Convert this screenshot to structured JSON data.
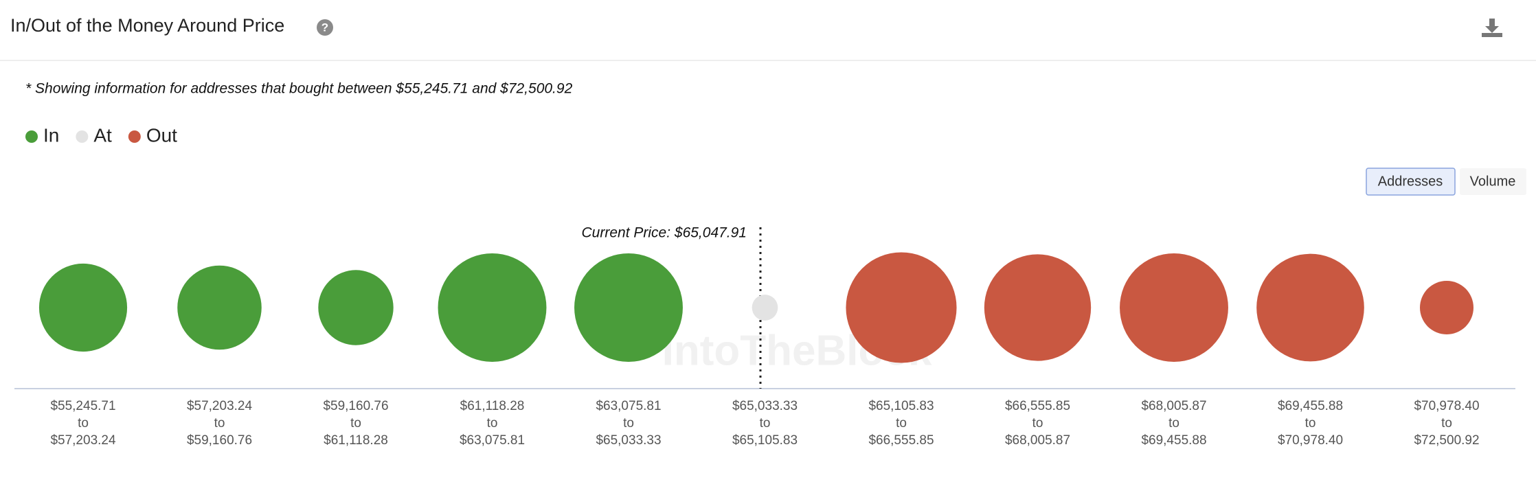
{
  "header": {
    "title": "In/Out of the Money Around Price",
    "note": "* Showing information for addresses that bought between $55,245.71 and $72,500.92",
    "buttons": [
      "Addresses",
      "Volume"
    ]
  },
  "chart_data": {
    "type": "bubble",
    "annotation": "Current Price: $65,047.91",
    "watermark": "IntoTheBlock",
    "categories": [
      [
        "$55,245.71",
        "to",
        "$57,203.24"
      ],
      [
        "$57,203.24",
        "to",
        "$59,160.76"
      ],
      [
        "$59,160.76",
        "to",
        "$61,118.28"
      ],
      [
        "$61,118.28",
        "to",
        "$63,075.81"
      ],
      [
        "$63,075.81",
        "to",
        "$65,033.33"
      ],
      [
        "$65,033.33",
        "to",
        "$65,105.83"
      ],
      [
        "$65,105.83",
        "to",
        "$66,555.85"
      ],
      [
        "$66,555.85",
        "to",
        "$68,005.87"
      ],
      [
        "$68,005.87",
        "to",
        "$69,455.88"
      ],
      [
        "$69,455.88",
        "to",
        "$70,978.40"
      ],
      [
        "$70,978.40",
        "to",
        "$72,500.92"
      ]
    ],
    "series": [
      {
        "name": "In",
        "color": "#4a9d3a",
        "values": [
          81,
          74,
          59,
          123,
          123,
          null,
          null,
          null,
          null,
          null,
          null
        ]
      },
      {
        "name": "At",
        "color": "#e3e3e3",
        "values": [
          null,
          null,
          null,
          null,
          null,
          7,
          null,
          null,
          null,
          null,
          null
        ]
      },
      {
        "name": "Out",
        "color": "#c95841",
        "values": [
          null,
          null,
          null,
          null,
          null,
          null,
          128,
          119,
          123,
          121,
          30
        ]
      }
    ]
  }
}
